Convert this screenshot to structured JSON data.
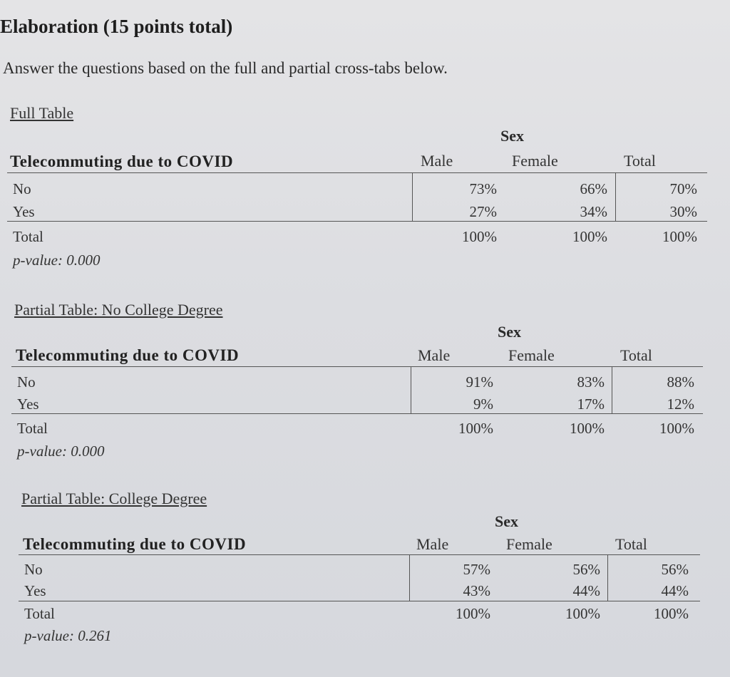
{
  "heading": "Elaboration (15 points total)",
  "intro": "Answer the questions based on the full and partial cross-tabs below.",
  "tables": [
    {
      "title": "Full Table",
      "group_label": "Sex",
      "row_header": "Telecommuting due to COVID",
      "columns": [
        "Male",
        "Female",
        "Total"
      ],
      "rows": [
        {
          "label": "No",
          "values": [
            "73%",
            "66%",
            "70%"
          ]
        },
        {
          "label": "Yes",
          "values": [
            "27%",
            "34%",
            "30%"
          ]
        },
        {
          "label": "Total",
          "values": [
            "100%",
            "100%",
            "100%"
          ]
        }
      ],
      "p_value": "p-value: 0.000"
    },
    {
      "title": "Partial Table: No College Degree",
      "group_label": "Sex",
      "row_header": "Telecommuting due to COVID",
      "columns": [
        "Male",
        "Female",
        "Total"
      ],
      "rows": [
        {
          "label": "No",
          "values": [
            "91%",
            "83%",
            "88%"
          ]
        },
        {
          "label": "Yes",
          "values": [
            "9%",
            "17%",
            "12%"
          ]
        },
        {
          "label": "Total",
          "values": [
            "100%",
            "100%",
            "100%"
          ]
        }
      ],
      "p_value": "p-value: 0.000"
    },
    {
      "title": "Partial Table: College Degree",
      "group_label": "Sex",
      "row_header": "Telecommuting due to COVID",
      "columns": [
        "Male",
        "Female",
        "Total"
      ],
      "rows": [
        {
          "label": "No",
          "values": [
            "57%",
            "56%",
            "56%"
          ]
        },
        {
          "label": "Yes",
          "values": [
            "43%",
            "44%",
            "44%"
          ]
        },
        {
          "label": "Total",
          "values": [
            "100%",
            "100%",
            "100%"
          ]
        }
      ],
      "p_value": "p-value: 0.261"
    }
  ]
}
